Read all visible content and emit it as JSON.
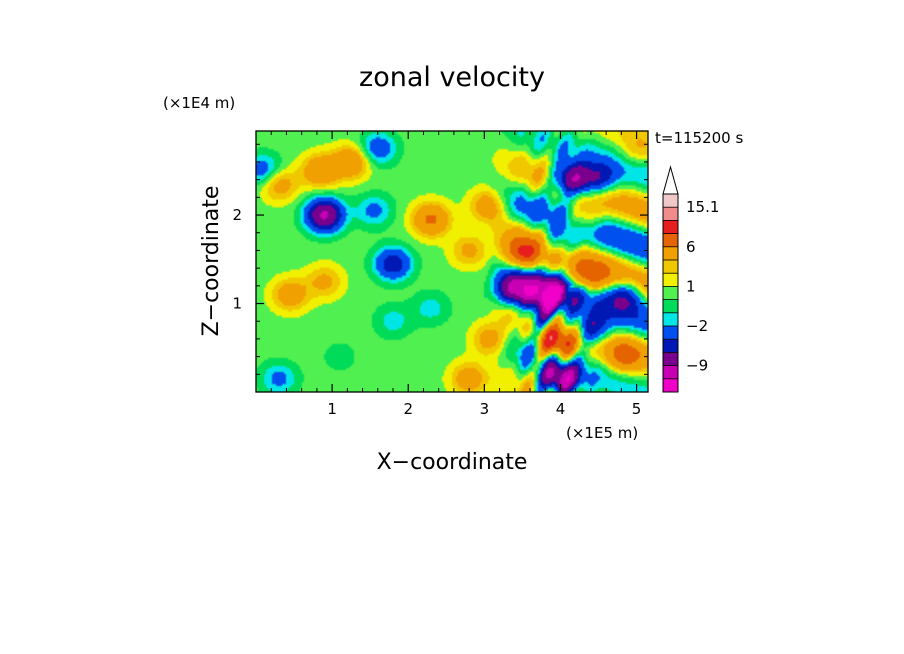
{
  "chart_data": {
    "type": "heatmap",
    "title": "zonal velocity",
    "xlabel": "X−coordinate",
    "ylabel": "Z−coordinate",
    "x_scale_label": "(×1E5 m)",
    "y_scale_label": "(×1E4 m)",
    "time_label": "t=115200 s",
    "xlim": [
      0,
      5.15
    ],
    "ylim": [
      0,
      2.95
    ],
    "x_ticks": [
      1,
      2,
      3,
      4,
      5
    ],
    "x_tick_labels": [
      "1",
      "2",
      "3",
      "4",
      "5"
    ],
    "y_ticks": [
      1,
      2
    ],
    "y_tick_labels": [
      "1",
      "2"
    ],
    "colorbar": {
      "levels": [
        -15.1,
        -12,
        -9,
        -6,
        -4,
        -2,
        -1,
        0,
        1,
        2,
        3,
        6,
        9,
        12,
        15.1
      ],
      "labeled": [
        {
          "value": 15.1,
          "text": "15.1"
        },
        {
          "value": 6,
          "text": "6"
        },
        {
          "value": 1,
          "text": "1"
        },
        {
          "value": -2,
          "text": "−2"
        },
        {
          "value": -9,
          "text": "−9"
        }
      ],
      "colors": [
        "#f000c8",
        "#c800b4",
        "#78008c",
        "#0018b4",
        "#0050f0",
        "#00e6e6",
        "#00dc5a",
        "#50f050",
        "#f0f000",
        "#f0c800",
        "#f0a000",
        "#e66400",
        "#e61e1e",
        "#f08c8c",
        "#f0c8c8"
      ],
      "extend": "max"
    },
    "colors": {
      "axis": "#000000",
      "background": "#ffffff"
    },
    "features": [
      {
        "x": 0.9,
        "z": 2.0,
        "u": -10
      },
      {
        "x": 0.1,
        "z": 2.5,
        "u": -4
      },
      {
        "x": 0.3,
        "z": 2.35,
        "u": 4
      },
      {
        "x": 0.85,
        "z": 2.5,
        "u": 5
      },
      {
        "x": 0.45,
        "z": 1.1,
        "u": 4
      },
      {
        "x": 0.9,
        "z": 1.25,
        "u": 3
      },
      {
        "x": 1.25,
        "z": 2.6,
        "u": 5
      },
      {
        "x": 1.6,
        "z": 2.75,
        "u": -4
      },
      {
        "x": 1.55,
        "z": 2.05,
        "u": -3
      },
      {
        "x": 2.3,
        "z": 1.95,
        "u": 6
      },
      {
        "x": 2.8,
        "z": 1.6,
        "u": 3
      },
      {
        "x": 1.8,
        "z": 1.45,
        "u": -6
      },
      {
        "x": 2.3,
        "z": 0.95,
        "u": -2
      },
      {
        "x": 1.8,
        "z": 0.8,
        "u": -2
      },
      {
        "x": 1.1,
        "z": 0.4,
        "u": -1
      },
      {
        "x": 0.3,
        "z": 0.15,
        "u": -3
      },
      {
        "x": 2.8,
        "z": 0.15,
        "u": 4
      },
      {
        "x": 3.05,
        "z": 2.1,
        "u": 4
      },
      {
        "x": 3.5,
        "z": 1.55,
        "u": 7
      },
      {
        "x": 3.4,
        "z": 1.15,
        "u": -10
      },
      {
        "x": 3.85,
        "z": 1.1,
        "u": -12
      },
      {
        "x": 4.15,
        "z": 2.4,
        "u": -11
      },
      {
        "x": 4.5,
        "z": 2.4,
        "u": -6
      },
      {
        "x": 4.3,
        "z": 1.95,
        "u": 4
      },
      {
        "x": 4.0,
        "z": 1.65,
        "u": -4
      },
      {
        "x": 4.4,
        "z": 1.3,
        "u": 5
      },
      {
        "x": 4.85,
        "z": 1.1,
        "u": -6
      },
      {
        "x": 3.95,
        "z": 0.55,
        "u": 10
      },
      {
        "x": 3.75,
        "z": 0.85,
        "u": -7
      },
      {
        "x": 4.4,
        "z": 0.7,
        "u": -8
      },
      {
        "x": 4.0,
        "z": 0.15,
        "u": -11
      },
      {
        "x": 4.85,
        "z": 0.4,
        "u": 5
      },
      {
        "x": 3.1,
        "z": 0.6,
        "u": 4
      },
      {
        "x": 5.0,
        "z": 2.7,
        "u": 2
      }
    ]
  }
}
